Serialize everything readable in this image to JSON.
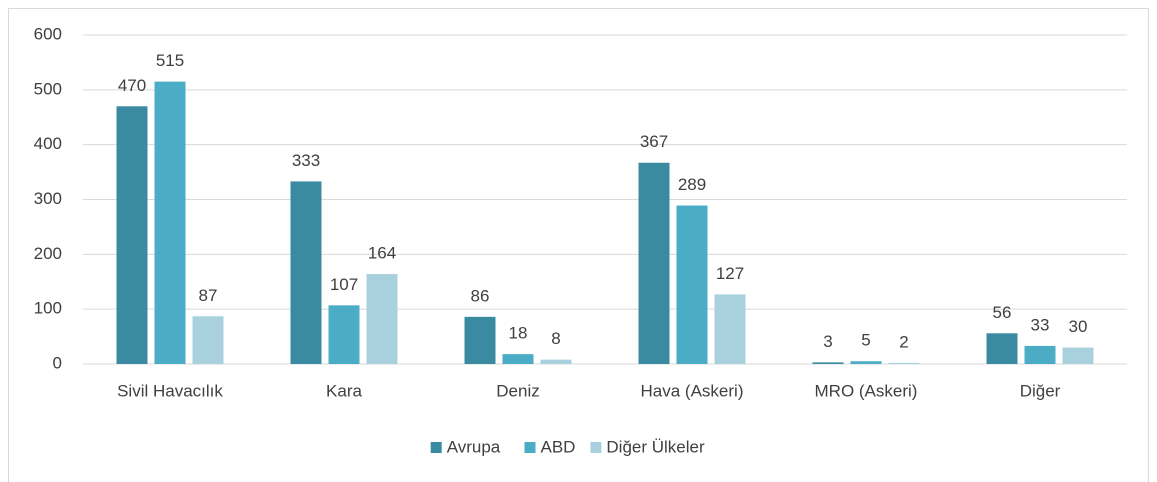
{
  "chart_data": {
    "type": "bar",
    "categories": [
      "Sivil Havacılık",
      "Kara",
      "Deniz",
      "Hava (Askeri)",
      "MRO (Askeri)",
      "Diğer"
    ],
    "series": [
      {
        "name": "Avrupa",
        "color": "#3a8ba1",
        "values": [
          470,
          333,
          86,
          367,
          3,
          56
        ]
      },
      {
        "name": "ABD",
        "color": "#4bacc6",
        "values": [
          515,
          107,
          18,
          289,
          5,
          33
        ]
      },
      {
        "name": "Diğer Ülkeler",
        "color": "#a9d1dd",
        "values": [
          87,
          164,
          8,
          127,
          2,
          30
        ]
      }
    ],
    "ylim": [
      0,
      600
    ],
    "yticks": [
      0,
      100,
      200,
      300,
      400,
      500,
      600
    ],
    "grid": true,
    "legend": "bottom"
  }
}
